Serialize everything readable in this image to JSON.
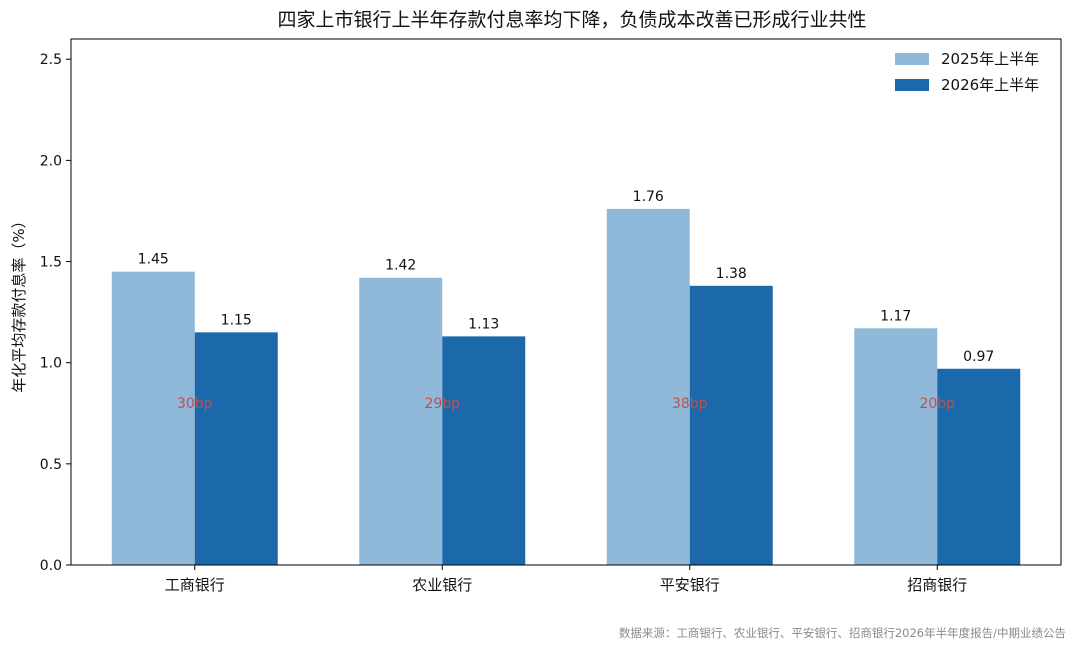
{
  "chart_data": {
    "type": "bar",
    "title": "四家上市银行上半年存款付息率均下降，负债成本改善已形成行业共性",
    "ylabel": "年化平均存款付息率（%）",
    "categories": [
      "工商银行",
      "农业银行",
      "平安银行",
      "招商银行"
    ],
    "series": [
      {
        "name": "2025年上半年",
        "values": [
          1.45,
          1.42,
          1.76,
          1.17
        ],
        "color": "#8fb8d9"
      },
      {
        "name": "2026年上半年",
        "values": [
          1.15,
          1.13,
          1.38,
          0.97
        ],
        "color": "#1b69ab"
      }
    ],
    "value_labels": [
      [
        "1.45",
        "1.42",
        "1.76",
        "1.17"
      ],
      [
        "1.15",
        "1.13",
        "1.38",
        "0.97"
      ]
    ],
    "annotations": [
      "30bp",
      "29bp",
      "38bp",
      "20bp"
    ],
    "ylim": [
      0,
      2.6
    ],
    "yticks": [
      "0.0",
      "0.5",
      "1.0",
      "1.5",
      "2.0",
      "2.5"
    ],
    "legend_position": "top-right",
    "grid": false
  },
  "source_note": "数据来源：工商银行、农业银行、平安银行、招商银行2026年半年度报告/中期业绩公告"
}
